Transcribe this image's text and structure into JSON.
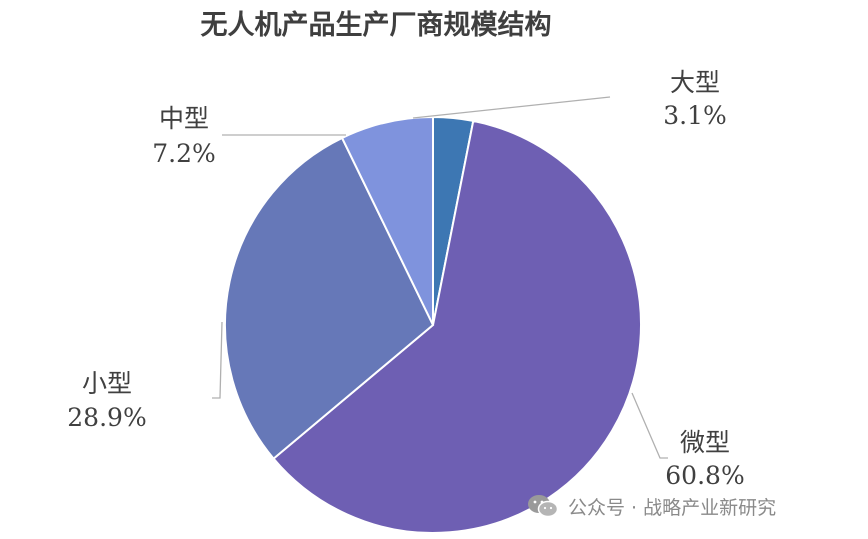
{
  "chart_data": {
    "type": "pie",
    "title": "无人机产品生产厂商规模结构",
    "slices": [
      {
        "label": "大型",
        "value": 3.1,
        "value_label": "3.1%",
        "color": "#3d77b3"
      },
      {
        "label": "微型",
        "value": 60.8,
        "value_label": "60.8%",
        "color": "#6e5fb3"
      },
      {
        "label": "小型",
        "value": 28.9,
        "value_label": "28.9%",
        "color": "#6678b8"
      },
      {
        "label": "中型",
        "value": 7.2,
        "value_label": "7.2%",
        "color": "#7f93dd"
      }
    ],
    "start": "top, clockwise",
    "labels": "outside with leader lines",
    "legend": "none"
  },
  "watermark": {
    "text": "公众号 · 战略产业新研究",
    "icon": "wechat-icon"
  }
}
